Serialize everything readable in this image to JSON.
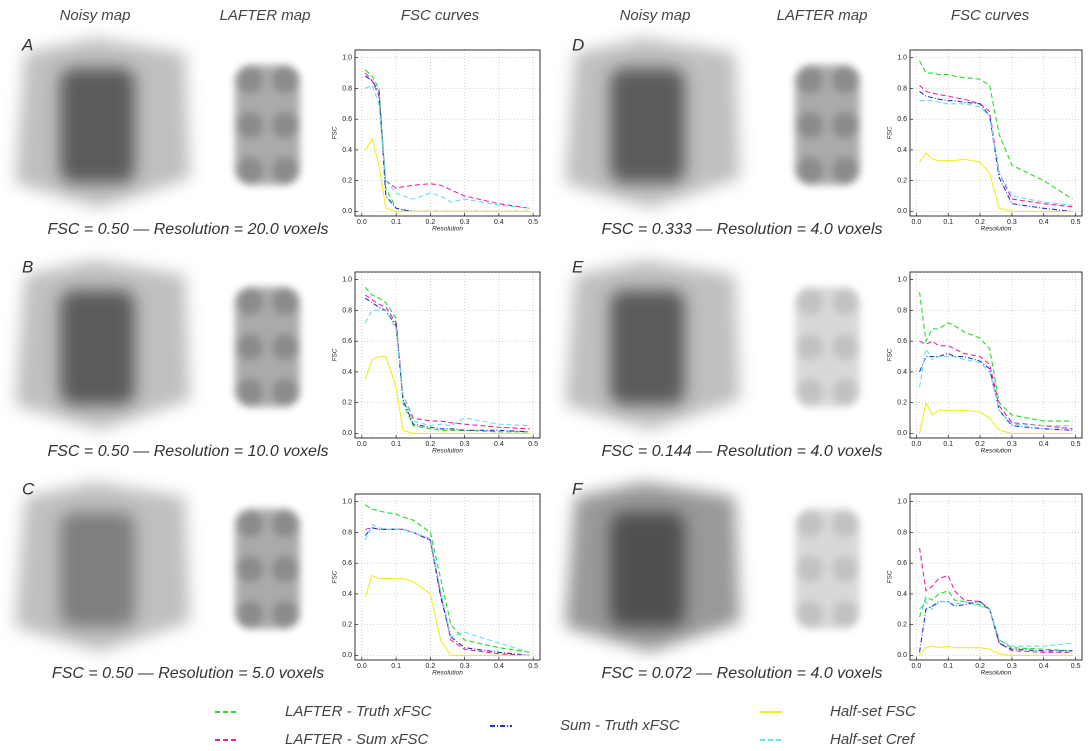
{
  "headers": [
    "Noisy map",
    "LAFTER map",
    "FSC curves",
    "Noisy map",
    "LAFTER map",
    "FSC curves"
  ],
  "legend": [
    "LAFTER - Truth xFSC",
    "LAFTER - Sum xFSC",
    "Sum - Truth xFSC",
    "Half-set FSC",
    "Half-set Cref"
  ],
  "chart_data": [
    {
      "type": "line",
      "panel": "A",
      "caption": "FSC = 0.50  —  Resolution = 20.0 voxels",
      "xlabel": "Resolution",
      "ylabel": "FSC",
      "grid": true,
      "xlim": [
        -0.02,
        0.52
      ],
      "ylim": [
        -0.03,
        1.05
      ],
      "xticks": [
        {
          "value": 0,
          "label": "0.0"
        },
        0.1,
        0.2,
        0.3,
        0.4,
        0.5
      ],
      "yticks": [
        {
          "value": 0,
          "label": "0.0"
        },
        0.2,
        0.4,
        0.6,
        0.8,
        {
          "value": 1,
          "label": "1.0"
        }
      ],
      "x": [
        0.01,
        0.03,
        0.05,
        0.07,
        0.1,
        0.12,
        0.15,
        0.2,
        0.23,
        0.26,
        0.3,
        0.4,
        0.49
      ],
      "series": [
        {
          "color": "#22dd22",
          "dash": "dashed",
          "values": [
            0.92,
            0.88,
            0.8,
            0.15,
            0.02,
            0.01,
            0,
            0,
            0,
            0,
            0,
            0,
            0
          ]
        },
        {
          "color": "#ee22aa",
          "dash": "dashed",
          "values": [
            0.9,
            0.85,
            0.75,
            0.2,
            0.15,
            0.16,
            0.17,
            0.18,
            0.17,
            0.14,
            0.1,
            0.05,
            0.02
          ]
        },
        {
          "color": "#2233cc",
          "dash": "dashdot",
          "values": [
            0.88,
            0.85,
            0.78,
            0.1,
            0.02,
            0.01,
            0,
            0,
            0,
            0,
            0,
            0,
            0
          ]
        },
        {
          "color": "#eeee22",
          "dash": "solid",
          "values": [
            0.4,
            0.47,
            0.3,
            0.02,
            0,
            0,
            0,
            0,
            0,
            0,
            0,
            0,
            0
          ]
        },
        {
          "color": "#66ddee",
          "dash": "dashed",
          "values": [
            0.8,
            0.82,
            0.7,
            0.2,
            0.12,
            0.1,
            0.08,
            0.12,
            0.1,
            0.06,
            0.08,
            0.04,
            0.02
          ]
        }
      ]
    },
    {
      "type": "line",
      "panel": "B",
      "caption": "FSC = 0.50  —  Resolution = 10.0 voxels",
      "xlabel": "Resolution",
      "ylabel": "FSC",
      "grid": true,
      "xlim": [
        -0.02,
        0.52
      ],
      "ylim": [
        -0.03,
        1.05
      ],
      "xticks": [
        {
          "value": 0,
          "label": "0.0"
        },
        0.1,
        0.2,
        0.3,
        0.4,
        0.5
      ],
      "yticks": [
        {
          "value": 0,
          "label": "0.0"
        },
        0.2,
        0.4,
        0.6,
        0.8,
        {
          "value": 1,
          "label": "1.0"
        }
      ],
      "x": [
        0.01,
        0.03,
        0.05,
        0.07,
        0.1,
        0.12,
        0.15,
        0.2,
        0.23,
        0.26,
        0.3,
        0.4,
        0.49
      ],
      "series": [
        {
          "color": "#22dd22",
          "dash": "dashed",
          "values": [
            0.95,
            0.9,
            0.88,
            0.85,
            0.75,
            0.2,
            0.05,
            0.03,
            0.02,
            0.02,
            0.02,
            0.01,
            0.01
          ]
        },
        {
          "color": "#ee22aa",
          "dash": "dashed",
          "values": [
            0.9,
            0.87,
            0.84,
            0.82,
            0.72,
            0.25,
            0.1,
            0.08,
            0.08,
            0.07,
            0.06,
            0.04,
            0.03
          ]
        },
        {
          "color": "#2233cc",
          "dash": "dashdot",
          "values": [
            0.88,
            0.85,
            0.82,
            0.8,
            0.7,
            0.22,
            0.06,
            0.04,
            0.03,
            0.03,
            0.02,
            0.02,
            0.01
          ]
        },
        {
          "color": "#eeee22",
          "dash": "solid",
          "values": [
            0.35,
            0.48,
            0.5,
            0.5,
            0.3,
            0.02,
            0,
            0,
            0,
            0,
            0,
            0,
            0
          ]
        },
        {
          "color": "#66ddee",
          "dash": "dashed",
          "values": [
            0.72,
            0.8,
            0.8,
            0.8,
            0.68,
            0.25,
            0.08,
            0.05,
            0.06,
            0.05,
            0.1,
            0.06,
            0.05
          ]
        }
      ]
    },
    {
      "type": "line",
      "panel": "C",
      "caption": "FSC = 0.50  —  Resolution = 5.0 voxels",
      "xlabel": "Resolution",
      "ylabel": "FSC",
      "grid": true,
      "xlim": [
        -0.02,
        0.52
      ],
      "ylim": [
        -0.03,
        1.05
      ],
      "xticks": [
        {
          "value": 0,
          "label": "0.0"
        },
        0.1,
        0.2,
        0.3,
        0.4,
        0.5
      ],
      "yticks": [
        {
          "value": 0,
          "label": "0.0"
        },
        0.2,
        0.4,
        0.6,
        0.8,
        {
          "value": 1,
          "label": "1.0"
        }
      ],
      "x": [
        0.01,
        0.03,
        0.05,
        0.07,
        0.1,
        0.12,
        0.15,
        0.2,
        0.23,
        0.26,
        0.3,
        0.4,
        0.49
      ],
      "series": [
        {
          "color": "#22dd22",
          "dash": "dashed",
          "values": [
            0.98,
            0.95,
            0.94,
            0.93,
            0.92,
            0.9,
            0.88,
            0.8,
            0.5,
            0.2,
            0.1,
            0.05,
            0.02
          ]
        },
        {
          "color": "#ee22aa",
          "dash": "dashed",
          "values": [
            0.82,
            0.83,
            0.82,
            0.82,
            0.82,
            0.82,
            0.8,
            0.75,
            0.4,
            0.1,
            0.04,
            0.01,
            0
          ]
        },
        {
          "color": "#2233cc",
          "dash": "dashdot",
          "values": [
            0.78,
            0.83,
            0.82,
            0.82,
            0.82,
            0.82,
            0.8,
            0.75,
            0.38,
            0.12,
            0.05,
            0.02,
            0
          ]
        },
        {
          "color": "#eeee22",
          "dash": "solid",
          "values": [
            0.38,
            0.52,
            0.5,
            0.5,
            0.5,
            0.5,
            0.48,
            0.4,
            0.1,
            0,
            0,
            0,
            0
          ]
        },
        {
          "color": "#66ddee",
          "dash": "dashed",
          "values": [
            0.75,
            0.85,
            0.83,
            0.82,
            0.82,
            0.82,
            0.8,
            0.76,
            0.42,
            0.12,
            0.15,
            0.08,
            0.02
          ]
        }
      ]
    },
    {
      "type": "line",
      "panel": "D",
      "caption": "FSC = 0.333  —  Resolution = 4.0 voxels",
      "xlabel": "Resolution",
      "ylabel": "FSC",
      "grid": true,
      "xlim": [
        -0.02,
        0.52
      ],
      "ylim": [
        -0.03,
        1.05
      ],
      "xticks": [
        {
          "value": 0,
          "label": "0.0"
        },
        0.1,
        0.2,
        0.3,
        0.4,
        0.5
      ],
      "yticks": [
        {
          "value": 0,
          "label": "0.0"
        },
        0.2,
        0.4,
        0.6,
        0.8,
        {
          "value": 1,
          "label": "1.0"
        }
      ],
      "x": [
        0.01,
        0.03,
        0.05,
        0.07,
        0.1,
        0.12,
        0.15,
        0.2,
        0.23,
        0.26,
        0.3,
        0.4,
        0.49
      ],
      "series": [
        {
          "color": "#22dd22",
          "dash": "dashed",
          "values": [
            0.98,
            0.9,
            0.9,
            0.89,
            0.89,
            0.88,
            0.87,
            0.86,
            0.82,
            0.5,
            0.3,
            0.2,
            0.08
          ]
        },
        {
          "color": "#ee22aa",
          "dash": "dashed",
          "values": [
            0.82,
            0.78,
            0.77,
            0.76,
            0.75,
            0.74,
            0.73,
            0.7,
            0.65,
            0.25,
            0.08,
            0.05,
            0.03
          ]
        },
        {
          "color": "#2233cc",
          "dash": "dashdot",
          "values": [
            0.78,
            0.75,
            0.74,
            0.73,
            0.72,
            0.72,
            0.71,
            0.7,
            0.62,
            0.22,
            0.05,
            0.02,
            0
          ]
        },
        {
          "color": "#eeee22",
          "dash": "solid",
          "values": [
            0.32,
            0.38,
            0.34,
            0.33,
            0.33,
            0.33,
            0.34,
            0.32,
            0.25,
            0.02,
            0,
            0,
            0
          ]
        },
        {
          "color": "#66ddee",
          "dash": "dashed",
          "values": [
            0.72,
            0.72,
            0.72,
            0.71,
            0.7,
            0.7,
            0.7,
            0.68,
            0.62,
            0.25,
            0.1,
            0.06,
            0.04
          ]
        }
      ]
    },
    {
      "type": "line",
      "panel": "E",
      "caption": "FSC = 0.144  —  Resolution = 4.0 voxels",
      "xlabel": "Resolution",
      "ylabel": "FSC",
      "grid": true,
      "xlim": [
        -0.02,
        0.52
      ],
      "ylim": [
        -0.03,
        1.05
      ],
      "xticks": [
        {
          "value": 0,
          "label": "0.0"
        },
        0.1,
        0.2,
        0.3,
        0.4,
        0.5
      ],
      "yticks": [
        {
          "value": 0,
          "label": "0.0"
        },
        0.2,
        0.4,
        0.6,
        0.8,
        {
          "value": 1,
          "label": "1.0"
        }
      ],
      "x": [
        0.01,
        0.03,
        0.05,
        0.07,
        0.1,
        0.12,
        0.15,
        0.2,
        0.23,
        0.26,
        0.3,
        0.4,
        0.49
      ],
      "series": [
        {
          "color": "#22dd22",
          "dash": "dashed",
          "values": [
            0.92,
            0.6,
            0.68,
            0.68,
            0.72,
            0.7,
            0.66,
            0.62,
            0.55,
            0.2,
            0.12,
            0.08,
            0.08
          ]
        },
        {
          "color": "#ee22aa",
          "dash": "dashed",
          "values": [
            0.6,
            0.58,
            0.6,
            0.57,
            0.57,
            0.55,
            0.52,
            0.5,
            0.45,
            0.18,
            0.07,
            0.05,
            0.03
          ]
        },
        {
          "color": "#2233cc",
          "dash": "dashdot",
          "values": [
            0.4,
            0.5,
            0.5,
            0.5,
            0.52,
            0.5,
            0.5,
            0.47,
            0.42,
            0.15,
            0.05,
            0.03,
            0.02
          ]
        },
        {
          "color": "#eeee22",
          "dash": "solid",
          "values": [
            0,
            0.2,
            0.12,
            0.15,
            0.15,
            0.15,
            0.15,
            0.14,
            0.1,
            0.02,
            0,
            0,
            0
          ]
        },
        {
          "color": "#66ddee",
          "dash": "dashed",
          "values": [
            0.3,
            0.55,
            0.48,
            0.5,
            0.5,
            0.5,
            0.48,
            0.46,
            0.4,
            0.15,
            0.06,
            0.05,
            0.05
          ]
        }
      ]
    },
    {
      "type": "line",
      "panel": "F",
      "caption": "FSC = 0.072  —  Resolution = 4.0 voxels",
      "xlabel": "Resolution",
      "ylabel": "FSC",
      "grid": true,
      "xlim": [
        -0.02,
        0.52
      ],
      "ylim": [
        -0.03,
        1.05
      ],
      "xticks": [
        {
          "value": 0,
          "label": "0.0"
        },
        0.1,
        0.2,
        0.3,
        0.4,
        0.5
      ],
      "yticks": [
        {
          "value": 0,
          "label": "0.0"
        },
        0.2,
        0.4,
        0.6,
        0.8,
        {
          "value": 1,
          "label": "1.0"
        }
      ],
      "x": [
        0.01,
        0.03,
        0.05,
        0.07,
        0.1,
        0.12,
        0.15,
        0.2,
        0.23,
        0.26,
        0.3,
        0.4,
        0.49
      ],
      "series": [
        {
          "color": "#22dd22",
          "dash": "dashed",
          "values": [
            0.25,
            0.38,
            0.36,
            0.4,
            0.42,
            0.36,
            0.35,
            0.33,
            0.3,
            0.1,
            0.05,
            0.04,
            0.03
          ]
        },
        {
          "color": "#ee22aa",
          "dash": "dashed",
          "values": [
            0.7,
            0.42,
            0.45,
            0.5,
            0.52,
            0.42,
            0.36,
            0.35,
            0.3,
            0.08,
            0.03,
            0.02,
            0.02
          ]
        },
        {
          "color": "#2233cc",
          "dash": "dashdot",
          "values": [
            0.02,
            0.3,
            0.32,
            0.35,
            0.35,
            0.32,
            0.33,
            0.35,
            0.3,
            0.08,
            0.04,
            0.03,
            0.03
          ]
        },
        {
          "color": "#eeee22",
          "dash": "solid",
          "values": [
            0,
            0.05,
            0.06,
            0.05,
            0.06,
            0.05,
            0.05,
            0.05,
            0.04,
            0.01,
            0,
            0,
            0
          ]
        },
        {
          "color": "#66ddee",
          "dash": "dashed",
          "values": [
            0.3,
            0.35,
            0.3,
            0.35,
            0.35,
            0.33,
            0.35,
            0.32,
            0.3,
            0.1,
            0.06,
            0.06,
            0.08
          ]
        }
      ]
    }
  ]
}
